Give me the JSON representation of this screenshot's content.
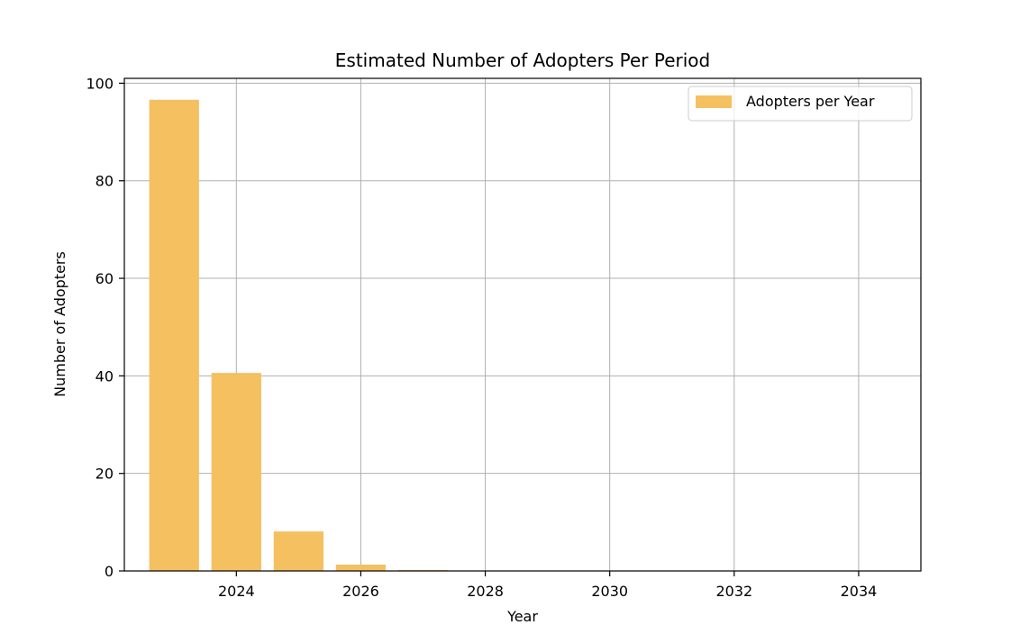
{
  "chart_data": {
    "type": "bar",
    "title": "Estimated Number of Adopters Per Period",
    "xlabel": "Year",
    "ylabel": "Number of Adopters",
    "x": [
      2023,
      2024,
      2025,
      2026,
      2027,
      2028,
      2029,
      2030,
      2031,
      2032,
      2033,
      2034
    ],
    "series": [
      {
        "name": "Adopters per Year",
        "color": "#f5c060",
        "values": [
          96.6,
          40.6,
          8.1,
          1.3,
          0.2,
          0.03,
          0.0,
          0.0,
          0.0,
          0.0,
          0.0,
          0.0
        ]
      }
    ],
    "xlim": [
      2022.2,
      2035.0
    ],
    "ylim": [
      0,
      101
    ],
    "xticks": [
      2024,
      2026,
      2028,
      2030,
      2032,
      2034
    ],
    "yticks": [
      0,
      20,
      40,
      60,
      80,
      100
    ],
    "grid": true,
    "legend_position": "top-right"
  }
}
